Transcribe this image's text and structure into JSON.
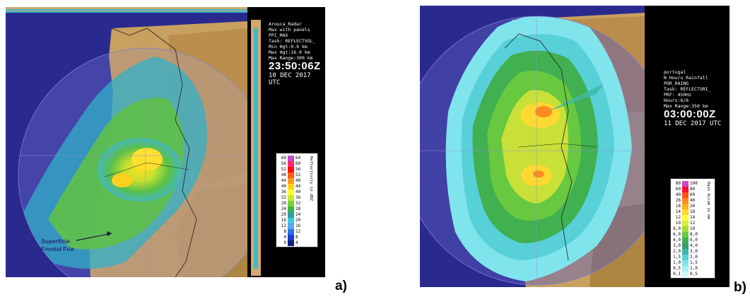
{
  "panel_a": {
    "label": "a)",
    "info": {
      "line1": "Arouca_Radar",
      "line2": "Max with panels",
      "line3": "PPI_MAX",
      "line4": "Task: REFLECTVOL_",
      "line5": "Min Hgt:0.9 km",
      "line6": "Max Hgt:16.0 km",
      "line7": "Max Range:300 km",
      "time": "23:50:06Z",
      "date": "10 DEC 2017 UTC"
    },
    "legend": {
      "title": "Reflectivity in dBZ",
      "left": [
        "60",
        "56",
        "52",
        "48",
        "44",
        "40",
        "36",
        "32",
        "28",
        "24",
        "20",
        "16",
        "12",
        "8",
        "4",
        "0"
      ],
      "right": [
        "64",
        "60",
        "56",
        "52",
        "48",
        "44",
        "40",
        "36",
        "32",
        "28",
        "24",
        "20",
        "16",
        "12",
        "8",
        "4"
      ],
      "colors": [
        "#c846c8",
        "#ff2a6a",
        "#ff1010",
        "#ff6010",
        "#ff9a20",
        "#ffd020",
        "#ffff30",
        "#c8e830",
        "#78d038",
        "#38b848",
        "#30a0a0",
        "#40c8e8",
        "#58a8f0",
        "#2c70e8",
        "#1c3cd0",
        "#102080"
      ]
    },
    "annotation": {
      "line1": "Superfície",
      "line2": "Frontal Fria"
    }
  },
  "panel_b": {
    "label": "b)",
    "info": {
      "line1": "portugal",
      "line2": "N Hours Rainfall",
      "line3": "POR_RAING",
      "line4": "Task: REFLECTSRI_",
      "line5": "PRF: 450Hz",
      "line6": "Hours:6/6",
      "line7": "Max Range:350 km",
      "time": "03:00:00Z",
      "date": "11 DEC 2017 UTC"
    },
    "legend": {
      "title": "Rain Accum in mm",
      "left": [
        "80",
        "60",
        "40",
        "26",
        "18",
        "14",
        "12",
        "10",
        "8,0",
        "6,0",
        "4,0",
        "3,0",
        "2,0",
        "1,5",
        "1,0",
        "0,5",
        "0,1"
      ],
      "right": [
        "100",
        "80",
        "60",
        "40",
        "26",
        "18",
        "14",
        "12",
        "10",
        "8,0",
        "6,0",
        "4,0",
        "3,0",
        "2,0",
        "1,5",
        "1,0",
        "0,5"
      ],
      "colors": [
        "#c846c8",
        "#ff1030",
        "#ff5018",
        "#ff8a20",
        "#ffb020",
        "#ffd830",
        "#ffff40",
        "#d8ec38",
        "#a0dc38",
        "#68c840",
        "#40b050",
        "#3c9c70",
        "#40b8a8",
        "#58d0d8",
        "#80e4ec",
        "#a8eef2",
        "#d0f6f8"
      ]
    }
  }
}
